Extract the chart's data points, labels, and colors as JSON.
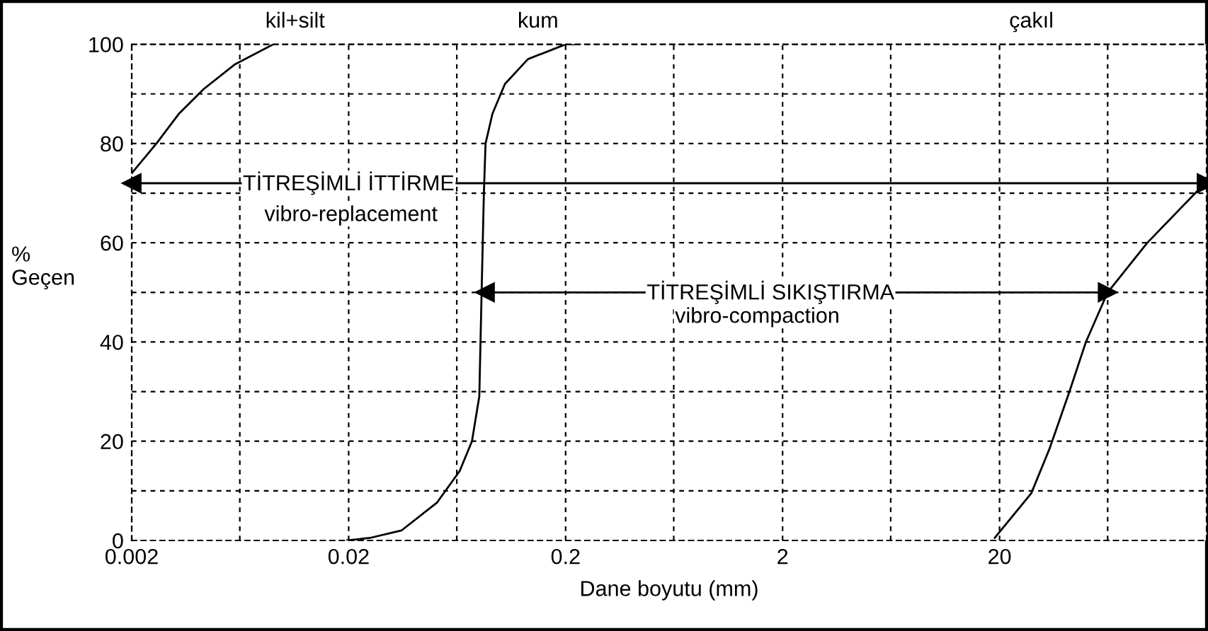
{
  "chart_data": {
    "type": "line",
    "xlabel": "Dane boyutu (mm)",
    "ylabel": "%\nGeçen",
    "log": "x",
    "xlim": [
      0.002,
      180
    ],
    "ylim": [
      0,
      100
    ],
    "xticks": [
      0.002,
      {
        "value": 0.0063,
        "label": null
      },
      0.02,
      {
        "value": 0.063,
        "label": null
      },
      0.2,
      {
        "value": 0.63,
        "label": null
      },
      2,
      {
        "value": 6.3,
        "label": null
      },
      20,
      {
        "value": 63,
        "label": null
      }
    ],
    "yticks": [
      0,
      {
        "value": 10,
        "label": null
      },
      20,
      {
        "value": 30,
        "label": null
      },
      40,
      {
        "value": 50,
        "label": null
      },
      60,
      {
        "value": 70,
        "label": null
      },
      80,
      {
        "value": 90,
        "label": null
      },
      100
    ],
    "grid": true,
    "line_style": "solid",
    "series": [
      {
        "color": "#000000",
        "marker": "none",
        "x": [
          0.002,
          0.0026,
          0.0033,
          0.0043,
          0.006,
          0.009
        ],
        "values": [
          74,
          80,
          86,
          91,
          96,
          100
        ]
      },
      {
        "color": "#000000",
        "marker": "none",
        "x": [
          0.0196,
          0.025,
          0.035,
          0.051,
          0.065,
          0.074,
          0.08,
          0.082,
          0.084,
          0.0855,
          0.092,
          0.105,
          0.134,
          0.2,
          0.23
        ],
        "values": [
          0,
          0.5,
          2,
          7.6,
          14,
          20,
          29,
          50,
          70,
          80,
          86,
          92,
          97,
          100,
          100
        ]
      },
      {
        "color": "#000000",
        "marker": "none",
        "x": [
          19,
          28,
          34,
          42,
          50,
          63,
          96,
          168
        ],
        "values": [
          0.5,
          9.5,
          18.5,
          30,
          40,
          50,
          60,
          71
        ]
      },
      {
        "color": "#000000",
        "marker": "triangle",
        "x": [
          0.002,
          180
        ],
        "values": [
          72,
          72
        ]
      },
      {
        "color": "#000000",
        "marker": "triangle",
        "x": [
          0.085,
          63
        ],
        "values": [
          50,
          50
        ]
      }
    ],
    "annotations": [
      {
        "text": "TİTREŞİMLİ İTTİRME",
        "x": 0.02,
        "y": 72
      },
      "vibro-replacement",
      {
        "text": "TİTREŞİMLİ SIKIŞTIRMA",
        "x": 1.76,
        "y": 50
      },
      "vibro-compaction",
      "kil+silt",
      "kum",
      "çakıl"
    ]
  }
}
